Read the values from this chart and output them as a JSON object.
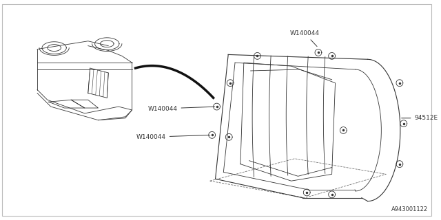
{
  "background_color": "#ffffff",
  "line_color": "#333333",
  "thin_lw": 0.6,
  "med_lw": 0.8,
  "diagram_label": "A943001122",
  "label_94512E": "94512E",
  "label_w140044": "W140044",
  "border_color": "#bbbbbb"
}
